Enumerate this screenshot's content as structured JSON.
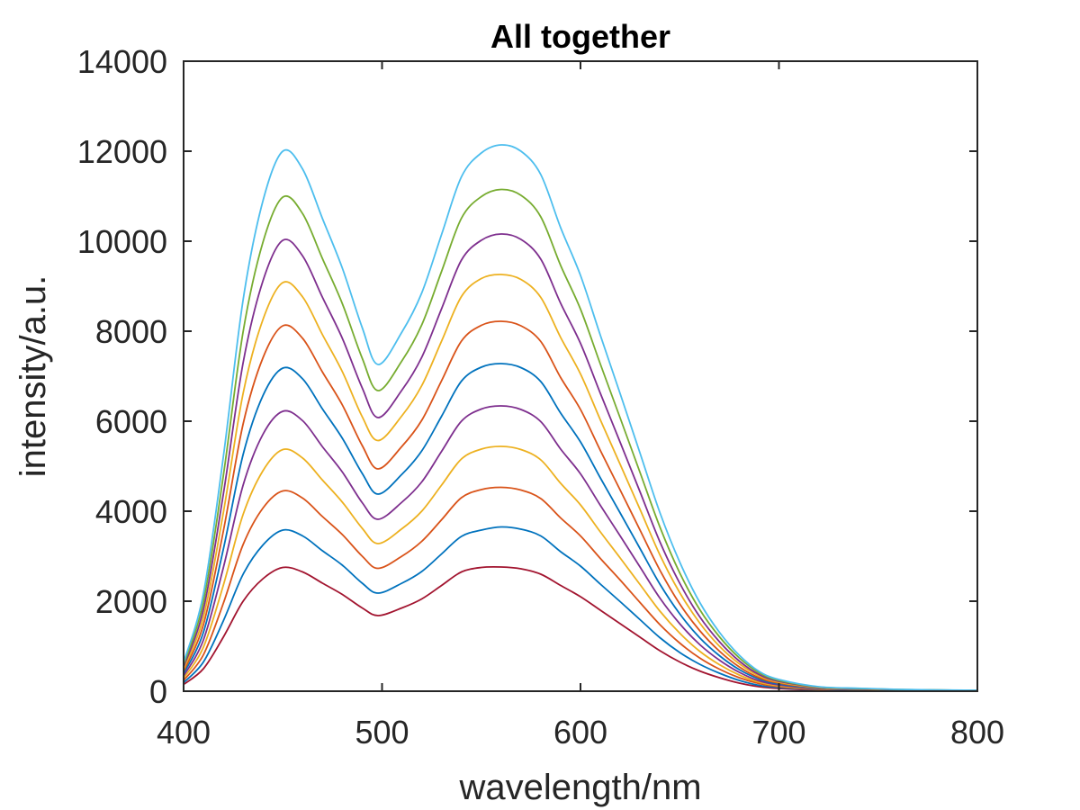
{
  "chart_data": {
    "type": "line",
    "title": "All together",
    "xlabel": "wavelength/nm",
    "ylabel": "intensity/a.u.",
    "xlim": [
      400,
      800
    ],
    "ylim": [
      0,
      14000
    ],
    "xticks": [
      400,
      500,
      600,
      700,
      800
    ],
    "yticks": [
      0,
      2000,
      4000,
      6000,
      8000,
      10000,
      12000,
      14000
    ],
    "xtick_labels": [
      "400",
      "500",
      "600",
      "700",
      "800"
    ],
    "ytick_labels": [
      "0",
      "2000",
      "4000",
      "6000",
      "8000",
      "10000",
      "12000",
      "14000"
    ],
    "grid": false,
    "box": true,
    "x": [
      400,
      410,
      420,
      430,
      440,
      450,
      460,
      470,
      480,
      490,
      498,
      510,
      520,
      530,
      540,
      550,
      560,
      570,
      580,
      590,
      600,
      610,
      620,
      630,
      640,
      650,
      660,
      670,
      680,
      690,
      700,
      720,
      740,
      760,
      780,
      800
    ],
    "series": [
      {
        "color": "#A2142F",
        "values": [
          150,
          500,
          1200,
          2000,
          2500,
          2750,
          2650,
          2400,
          2150,
          1850,
          1680,
          1850,
          2050,
          2350,
          2650,
          2750,
          2760,
          2720,
          2600,
          2350,
          2100,
          1800,
          1500,
          1200,
          900,
          650,
          450,
          300,
          180,
          100,
          60,
          25,
          15,
          10,
          8,
          5
        ]
      },
      {
        "color": "#0072BD",
        "values": [
          190,
          650,
          1560,
          2600,
          3250,
          3580,
          3450,
          3120,
          2800,
          2400,
          2180,
          2400,
          2660,
          3050,
          3440,
          3580,
          3650,
          3600,
          3450,
          3100,
          2780,
          2380,
          1990,
          1590,
          1190,
          860,
          600,
          400,
          240,
          130,
          80,
          35,
          20,
          13,
          10,
          7
        ]
      },
      {
        "color": "#D95319",
        "values": [
          240,
          810,
          1950,
          3260,
          4070,
          4450,
          4290,
          3880,
          3480,
          3000,
          2730,
          3000,
          3330,
          3810,
          4300,
          4480,
          4530,
          4470,
          4280,
          3850,
          3450,
          2950,
          2470,
          1970,
          1480,
          1070,
          740,
          490,
          300,
          170,
          100,
          40,
          25,
          16,
          12,
          8
        ]
      },
      {
        "color": "#EDB120",
        "values": [
          290,
          980,
          2350,
          3930,
          4900,
          5370,
          5180,
          4690,
          4200,
          3620,
          3280,
          3610,
          4000,
          4580,
          5160,
          5380,
          5440,
          5370,
          5140,
          4620,
          4140,
          3540,
          2960,
          2370,
          1780,
          1290,
          890,
          590,
          360,
          200,
          120,
          50,
          30,
          19,
          14,
          10
        ]
      },
      {
        "color": "#7E2F8E",
        "values": [
          340,
          1140,
          2740,
          4580,
          5710,
          6220,
          6010,
          5430,
          4870,
          4190,
          3820,
          4200,
          4650,
          5330,
          6000,
          6270,
          6340,
          6260,
          5990,
          5380,
          4830,
          4130,
          3450,
          2760,
          2070,
          1500,
          1040,
          690,
          420,
          230,
          140,
          55,
          35,
          22,
          16,
          11
        ]
      },
      {
        "color": "#0072BD",
        "values": [
          390,
          1310,
          3150,
          5260,
          6570,
          7180,
          6940,
          6270,
          5620,
          4840,
          4380,
          4820,
          5340,
          6110,
          6890,
          7200,
          7280,
          7190,
          6880,
          6180,
          5540,
          4740,
          3960,
          3170,
          2380,
          1720,
          1190,
          790,
          480,
          270,
          160,
          65,
          40,
          25,
          18,
          13
        ]
      },
      {
        "color": "#D95319",
        "values": [
          440,
          1480,
          3550,
          5940,
          7410,
          8120,
          7840,
          7090,
          6360,
          5460,
          4940,
          5440,
          6020,
          6900,
          7780,
          8130,
          8220,
          8120,
          7770,
          6970,
          6260,
          5350,
          4470,
          3580,
          2690,
          1940,
          1350,
          890,
          540,
          300,
          180,
          75,
          45,
          28,
          20,
          14
        ]
      },
      {
        "color": "#EDB120",
        "values": [
          490,
          1650,
          3960,
          6620,
          8260,
          9080,
          8760,
          7920,
          7100,
          6100,
          5570,
          6120,
          6790,
          7780,
          8770,
          9170,
          9260,
          9150,
          8750,
          7860,
          7050,
          6030,
          5040,
          4040,
          3030,
          2190,
          1520,
          1000,
          610,
          340,
          200,
          80,
          50,
          31,
          22,
          15
        ]
      },
      {
        "color": "#7E2F8E",
        "values": [
          540,
          1820,
          4370,
          7300,
          9120,
          10020,
          9670,
          8750,
          7840,
          6740,
          6080,
          6690,
          7420,
          8500,
          9580,
          10020,
          10160,
          10040,
          9600,
          8620,
          7730,
          6620,
          5530,
          4430,
          3320,
          2400,
          1660,
          1100,
          670,
          370,
          220,
          90,
          55,
          34,
          24,
          17
        ]
      },
      {
        "color": "#77AC30",
        "values": [
          590,
          1990,
          4780,
          7990,
          9980,
          10980,
          10610,
          9610,
          8610,
          7400,
          6680,
          7340,
          8140,
          9330,
          10510,
          10990,
          11150,
          11020,
          10540,
          9460,
          8490,
          7270,
          6070,
          4860,
          3650,
          2630,
          1820,
          1210,
          740,
          410,
          240,
          95,
          60,
          37,
          26,
          18
        ]
      },
      {
        "color": "#4DBEEE",
        "values": [
          640,
          2170,
          5200,
          8700,
          10900,
          12000,
          11600,
          10500,
          9400,
          8080,
          7260,
          7980,
          8850,
          10150,
          11430,
          11960,
          12140,
          12000,
          11480,
          10300,
          9240,
          7910,
          6610,
          5290,
          3970,
          2870,
          1980,
          1310,
          800,
          440,
          260,
          100,
          65,
          40,
          28,
          20
        ]
      }
    ]
  }
}
